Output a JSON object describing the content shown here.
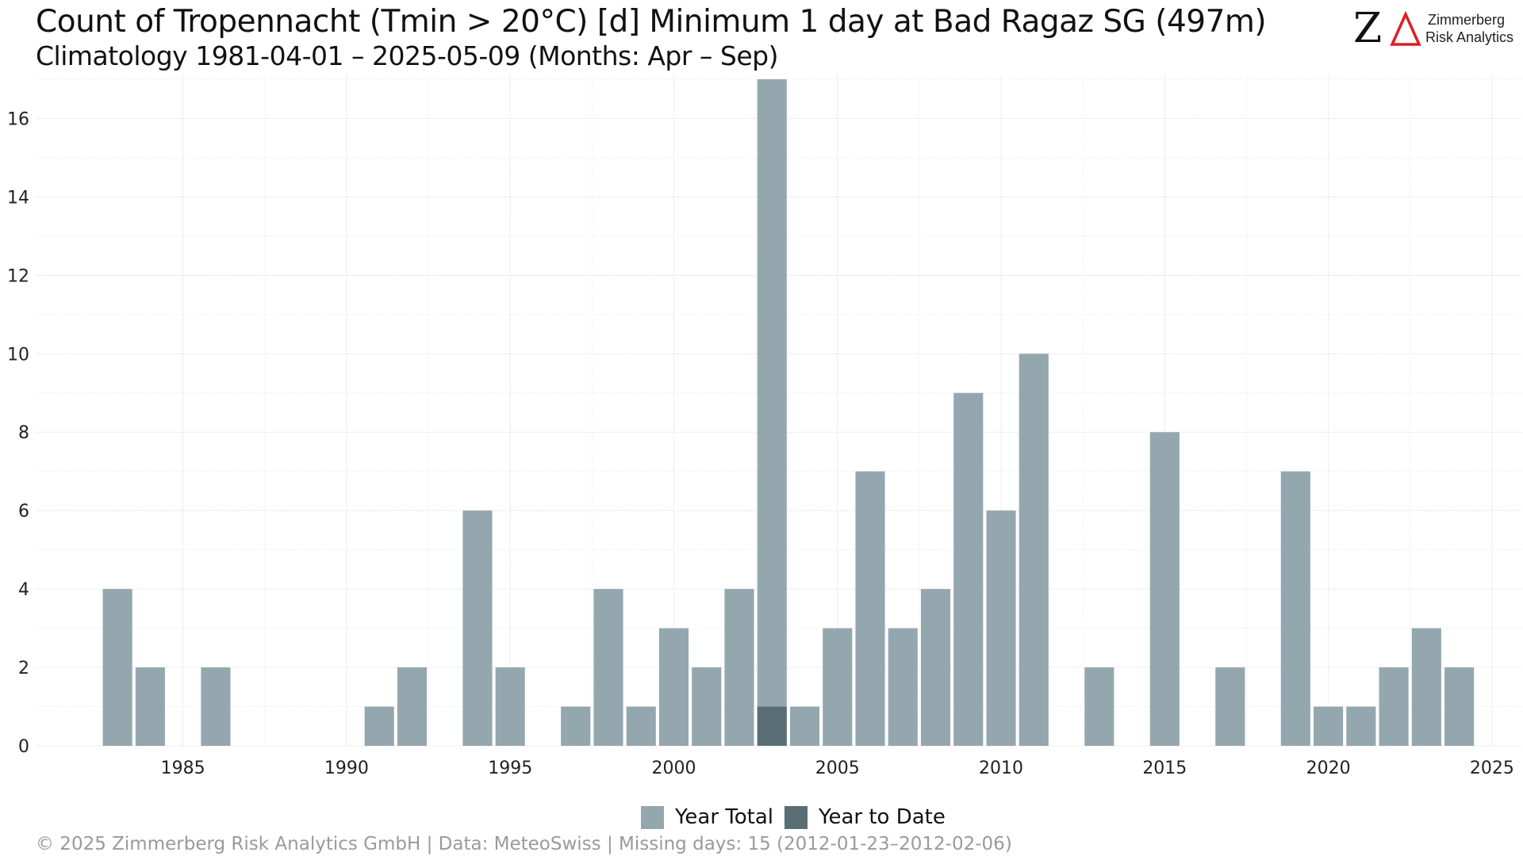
{
  "header": {
    "title": "Count of Tropennacht (Tmin > 20°C) [d] Minimum 1 day at Bad Ragaz  SG (497m)",
    "subtitle": "Climatology 1981-04-01 – 2025-05-09 (Months: Apr – Sep)"
  },
  "logo": {
    "mark": "Z",
    "name_line1": "Zimmerberg",
    "name_line2": "Risk Analytics",
    "accent_color": "#e31b23"
  },
  "footer": {
    "text": "©  2025 Zimmerberg Risk Analytics GmbH | Data: MeteoSwiss | Missing days: 15 (2012-01-23–2012-02-06)"
  },
  "colors": {
    "year_total": "#95a7ae",
    "year_to_date": "#5a6e75",
    "grid": "#e6e6e6"
  },
  "chart_data": {
    "type": "bar",
    "title": "Count of Tropennacht (Tmin > 20°C) [d] Minimum 1 day at Bad Ragaz  SG (497m)",
    "subtitle": "Climatology 1981-04-01 – 2025-05-09 (Months: Apr – Sep)",
    "xlabel": "",
    "ylabel": "",
    "xlim": [
      1980.5,
      2025.9
    ],
    "ylim": [
      0,
      17
    ],
    "x_ticks": [
      1985,
      1990,
      1995,
      2000,
      2005,
      2010,
      2015,
      2020,
      2025
    ],
    "y_ticks": [
      0,
      2,
      4,
      6,
      8,
      10,
      12,
      14,
      16
    ],
    "grid": true,
    "legend_position": "bottom",
    "series": [
      {
        "name": "Year Total",
        "points": [
          {
            "x": 1983,
            "y": 4
          },
          {
            "x": 1984,
            "y": 2
          },
          {
            "x": 1986,
            "y": 2
          },
          {
            "x": 1991,
            "y": 1
          },
          {
            "x": 1992,
            "y": 2
          },
          {
            "x": 1994,
            "y": 6
          },
          {
            "x": 1995,
            "y": 2
          },
          {
            "x": 1997,
            "y": 1
          },
          {
            "x": 1998,
            "y": 4
          },
          {
            "x": 1999,
            "y": 1
          },
          {
            "x": 2000,
            "y": 3
          },
          {
            "x": 2001,
            "y": 2
          },
          {
            "x": 2002,
            "y": 4
          },
          {
            "x": 2003,
            "y": 17
          },
          {
            "x": 2004,
            "y": 1
          },
          {
            "x": 2005,
            "y": 3
          },
          {
            "x": 2006,
            "y": 7
          },
          {
            "x": 2007,
            "y": 3
          },
          {
            "x": 2008,
            "y": 4
          },
          {
            "x": 2009,
            "y": 9
          },
          {
            "x": 2010,
            "y": 6
          },
          {
            "x": 2011,
            "y": 10
          },
          {
            "x": 2013,
            "y": 2
          },
          {
            "x": 2015,
            "y": 8
          },
          {
            "x": 2017,
            "y": 2
          },
          {
            "x": 2019,
            "y": 7
          },
          {
            "x": 2020,
            "y": 1
          },
          {
            "x": 2021,
            "y": 1
          },
          {
            "x": 2022,
            "y": 2
          },
          {
            "x": 2023,
            "y": 3
          },
          {
            "x": 2024,
            "y": 2
          }
        ]
      },
      {
        "name": "Year to Date",
        "points": [
          {
            "x": 2003,
            "y": 1
          }
        ]
      }
    ]
  }
}
